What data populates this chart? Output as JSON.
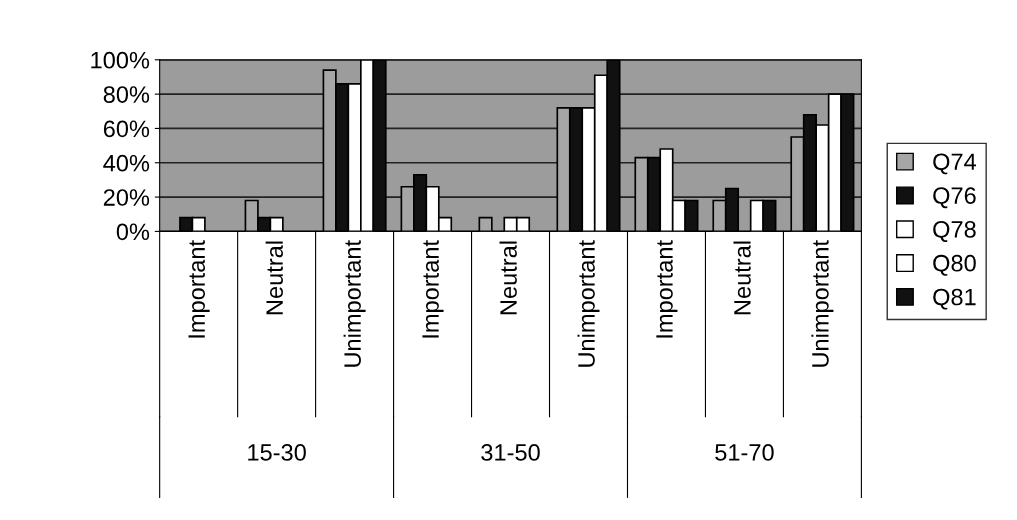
{
  "chart_data": {
    "type": "bar",
    "categories": [
      "Important",
      "Neutral",
      "Unimportant",
      "Important",
      "Neutral",
      "Unimportant",
      "Important",
      "Neutral",
      "Unimportant"
    ],
    "annotations": [
      "15-30",
      "31-50",
      "51-70"
    ],
    "series": [
      {
        "name": "Q74",
        "color": "#a6a6a6",
        "values": [
          0,
          18,
          94,
          26,
          8,
          72,
          43,
          18,
          55
        ]
      },
      {
        "name": "Q76",
        "color": "#111111",
        "values": [
          8,
          8,
          86,
          33,
          0,
          72,
          43,
          25,
          68
        ]
      },
      {
        "name": "Q78",
        "color": "#ffffff",
        "values": [
          8,
          8,
          86,
          26,
          8,
          72,
          48,
          0,
          62
        ]
      },
      {
        "name": "Q80",
        "color": "#ffffff",
        "values": [
          0,
          0,
          100,
          8,
          8,
          91,
          18,
          18,
          80
        ]
      },
      {
        "name": "Q81",
        "color": "#111111",
        "values": [
          0,
          0,
          100,
          0,
          0,
          100,
          18,
          18,
          80
        ]
      }
    ],
    "ylim": [
      0,
      100
    ],
    "yticks": [
      {
        "value": 0,
        "label": "0%"
      },
      {
        "value": 20,
        "label": "20%"
      },
      {
        "value": 40,
        "label": "40%"
      },
      {
        "value": 60,
        "label": "60%"
      },
      {
        "value": 80,
        "label": "80%"
      },
      {
        "value": 100,
        "label": "100%"
      }
    ],
    "grid": "y",
    "legend": "right"
  }
}
